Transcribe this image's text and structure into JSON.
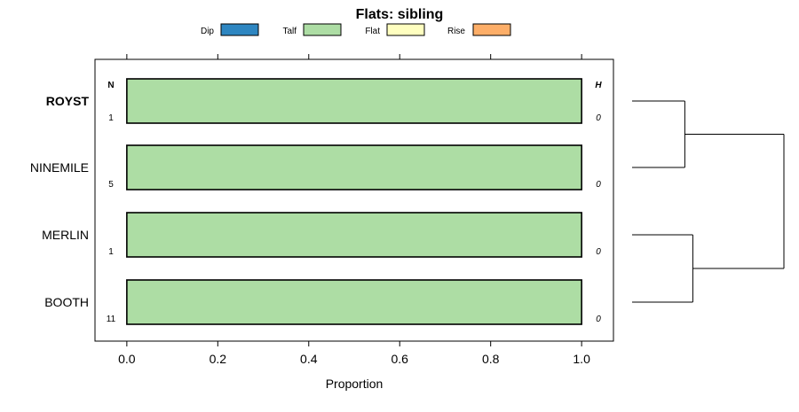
{
  "chart_data": {
    "type": "bar",
    "orientation": "horizontal",
    "stacked": true,
    "title": "Flats: sibling",
    "xlabel": "Proportion",
    "ylabel": "",
    "xlim": [
      -0.07,
      1.07
    ],
    "x_ticks": [
      0.0,
      0.2,
      0.4,
      0.6,
      0.8,
      1.0
    ],
    "x_tick_labels": [
      "0.0",
      "0.2",
      "0.4",
      "0.6",
      "0.8",
      "1.0"
    ],
    "legend": {
      "placement": "top",
      "entries": [
        {
          "name": "Dip",
          "color": "#2E86C1"
        },
        {
          "name": "Talf",
          "color": "#ADDDA4"
        },
        {
          "name": "Flat",
          "color": "#FFFFC0"
        },
        {
          "name": "Rise",
          "color": "#FDAE68"
        }
      ]
    },
    "n_header": "N",
    "h_header": "H",
    "categories": [
      "ROYST",
      "NINEMILE",
      "MERLIN",
      "BOOTH"
    ],
    "category_bold": [
      true,
      false,
      false,
      false
    ],
    "n_values": [
      "1",
      "5",
      "1",
      "11"
    ],
    "h_values": [
      "0",
      "0",
      "0",
      "0"
    ],
    "series": [
      {
        "name": "Dip",
        "values": [
          0,
          0,
          0,
          0
        ]
      },
      {
        "name": "Talf",
        "values": [
          1.0,
          1.0,
          1.0,
          1.0
        ]
      },
      {
        "name": "Flat",
        "values": [
          0,
          0,
          0,
          0
        ]
      },
      {
        "name": "Rise",
        "values": [
          0,
          0,
          0,
          0
        ]
      }
    ],
    "dendrogram": {
      "merges": [
        {
          "left": "ROYST",
          "right": "NINEMILE"
        },
        {
          "left": "MERLIN",
          "right": "BOOTH"
        },
        {
          "left": "ROYST+NINEMILE",
          "right": "MERLIN+BOOTH"
        }
      ],
      "heights": [
        0.33,
        0.38,
        0.95
      ]
    }
  }
}
